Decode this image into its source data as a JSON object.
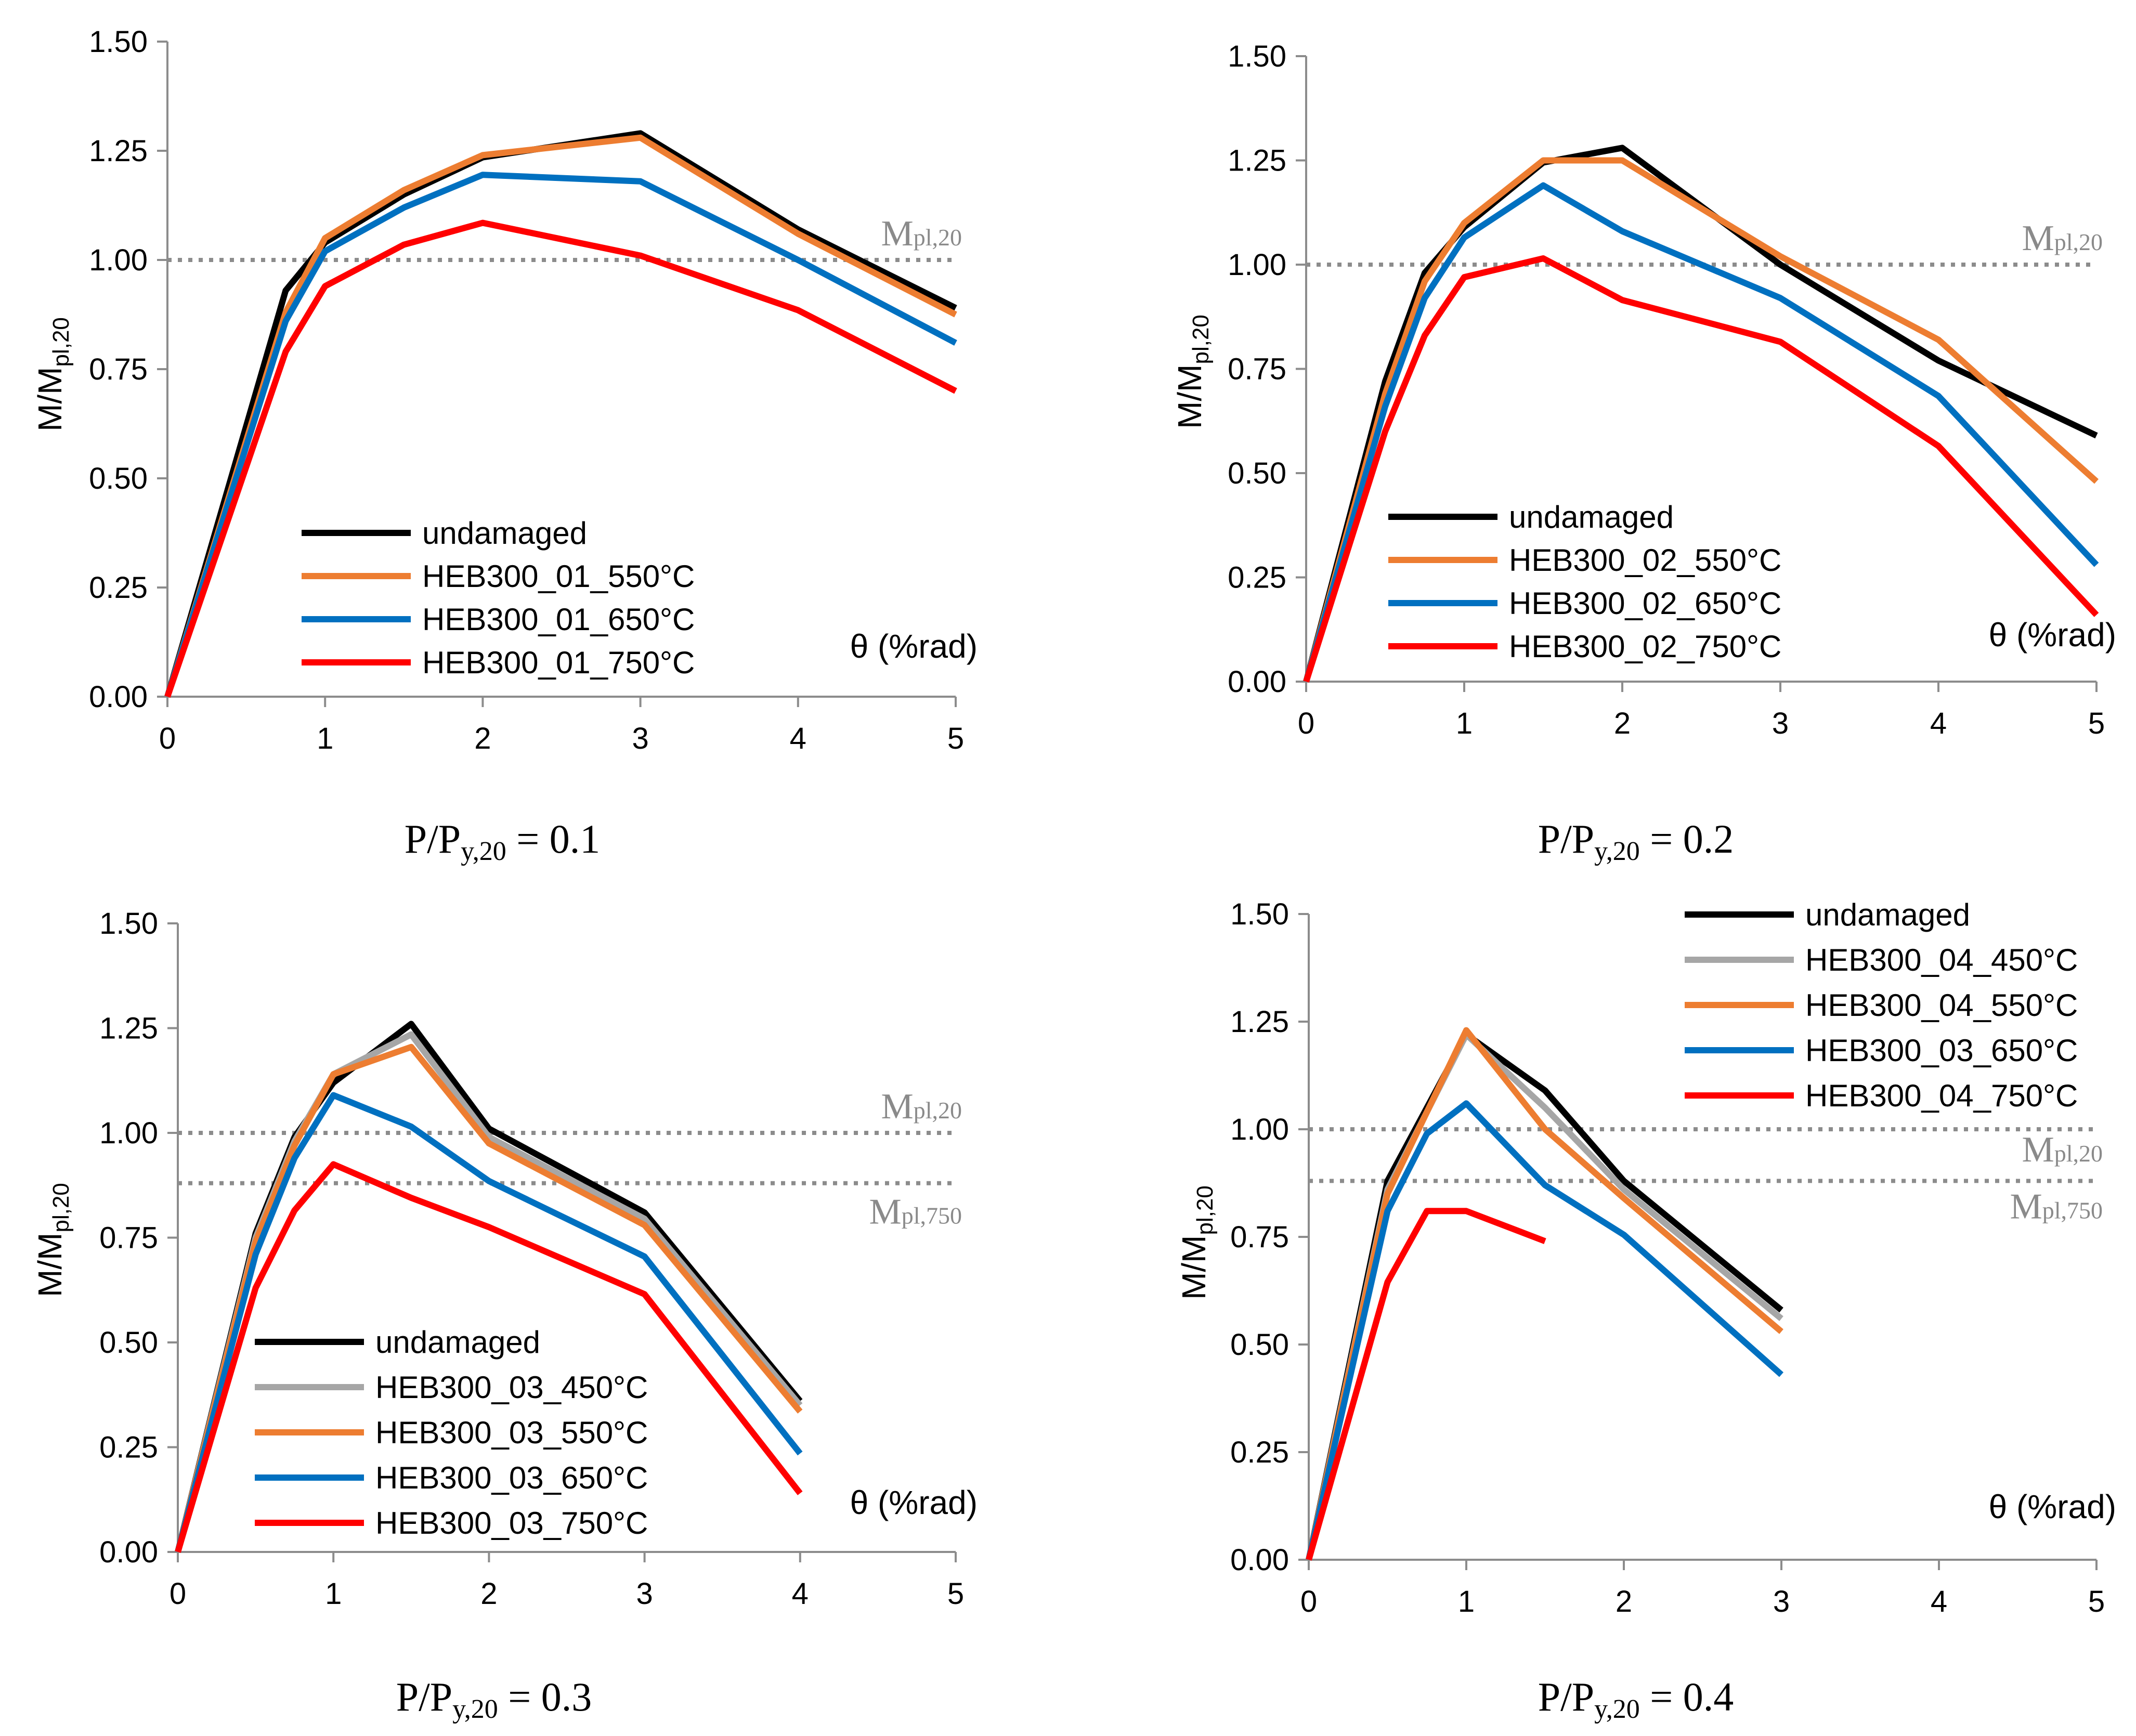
{
  "colors": {
    "undamaged": "#000000",
    "t450": "#a6a6a6",
    "t550": "#ed7d31",
    "t650": "#0070c0",
    "t750": "#ff0000",
    "axis": "#8c8c8c",
    "ref": "#8c8c8c",
    "annot": "#8a8a8a"
  },
  "chart_data": [
    {
      "type": "line",
      "caption": {
        "main": "P/P",
        "sub": "y,20",
        "rest": " = 0.1"
      },
      "ylabel": {
        "main": "M/M",
        "sub": "pl,20"
      },
      "xlabel": "θ (%rad)",
      "xlim": [
        0,
        5
      ],
      "ylim": [
        0,
        1.5
      ],
      "xticks": [
        "0",
        "1",
        "2",
        "3",
        "4",
        "5"
      ],
      "yticks": [
        "0.00",
        "0.25",
        "0.50",
        "0.75",
        "1.00",
        "1.25",
        "1.50"
      ],
      "legend_position": "bottom-left",
      "ref_lines": [
        {
          "y": 1.0,
          "label": "M",
          "sub": "pl,20",
          "label_side": "above"
        }
      ],
      "series": [
        {
          "name": "undamaged",
          "color_key": "undamaged",
          "x": [
            0,
            0.75,
            1,
            1.5,
            2,
            3,
            4,
            5
          ],
          "y": [
            0,
            0.93,
            1.04,
            1.15,
            1.235,
            1.29,
            1.07,
            0.89
          ]
        },
        {
          "name": "HEB300_01_550°C",
          "color_key": "t550",
          "x": [
            0,
            0.75,
            1,
            1.5,
            2,
            3,
            4,
            5
          ],
          "y": [
            0,
            0.88,
            1.05,
            1.16,
            1.24,
            1.28,
            1.06,
            0.875
          ]
        },
        {
          "name": "HEB300_01_650°C",
          "color_key": "t650",
          "x": [
            0,
            0.75,
            1,
            1.5,
            2,
            3,
            4,
            5
          ],
          "y": [
            0,
            0.86,
            1.02,
            1.12,
            1.195,
            1.18,
            1.0,
            0.81
          ]
        },
        {
          "name": "HEB300_01_750°C",
          "color_key": "t750",
          "x": [
            0,
            0.75,
            1,
            1.5,
            2,
            3,
            4,
            5
          ],
          "y": [
            0,
            0.79,
            0.94,
            1.035,
            1.085,
            1.01,
            0.885,
            0.7
          ]
        }
      ]
    },
    {
      "type": "line",
      "caption": {
        "main": "P/P",
        "sub": "y,20",
        "rest": " = 0.2"
      },
      "ylabel": {
        "main": "M/M",
        "sub": "pl,20"
      },
      "xlabel": "θ (%rad)",
      "xlim": [
        0,
        5
      ],
      "ylim": [
        0,
        1.5
      ],
      "xticks": [
        "0",
        "1",
        "2",
        "3",
        "4",
        "5"
      ],
      "yticks": [
        "0.00",
        "0.25",
        "0.50",
        "0.75",
        "1.00",
        "1.25",
        "1.50"
      ],
      "legend_position": "bottom-left",
      "ref_lines": [
        {
          "y": 1.0,
          "label": "M",
          "sub": "pl,20",
          "label_side": "above"
        }
      ],
      "series": [
        {
          "name": "undamaged",
          "color_key": "undamaged",
          "x": [
            0,
            0.5,
            0.75,
            1,
            1.5,
            2,
            3,
            4,
            5
          ],
          "y": [
            0,
            0.72,
            0.98,
            1.09,
            1.245,
            1.28,
            1.0,
            0.77,
            0.59
          ]
        },
        {
          "name": "HEB300_02_550°C",
          "color_key": "t550",
          "x": [
            0,
            0.5,
            0.75,
            1,
            1.5,
            2,
            3,
            4,
            5
          ],
          "y": [
            0,
            0.69,
            0.96,
            1.1,
            1.25,
            1.25,
            1.02,
            0.82,
            0.48
          ]
        },
        {
          "name": "HEB300_02_650°C",
          "color_key": "t650",
          "x": [
            0,
            0.5,
            0.75,
            1,
            1.5,
            2,
            3,
            4,
            5
          ],
          "y": [
            0,
            0.66,
            0.92,
            1.065,
            1.19,
            1.08,
            0.92,
            0.685,
            0.28
          ]
        },
        {
          "name": "HEB300_02_750°C",
          "color_key": "t750",
          "x": [
            0,
            0.5,
            0.75,
            1,
            1.5,
            2,
            3,
            4,
            5
          ],
          "y": [
            0,
            0.6,
            0.83,
            0.97,
            1.015,
            0.915,
            0.815,
            0.565,
            0.16
          ]
        }
      ]
    },
    {
      "type": "line",
      "caption": {
        "main": "P/P",
        "sub": "y,20",
        "rest": " = 0.3"
      },
      "ylabel": {
        "main": "M/M",
        "sub": "pl,20"
      },
      "xlabel": "θ (%rad)",
      "xlim": [
        0,
        5
      ],
      "ylim": [
        0,
        1.5
      ],
      "xticks": [
        "0",
        "1",
        "2",
        "3",
        "4",
        "5"
      ],
      "yticks": [
        "0.00",
        "0.25",
        "0.50",
        "0.75",
        "1.00",
        "1.25",
        "1.50"
      ],
      "legend_position": "bottom-left",
      "ref_lines": [
        {
          "y": 1.0,
          "label": "M",
          "sub": "pl,20",
          "label_side": "above"
        },
        {
          "y": 0.88,
          "label": "M",
          "sub": "pl,750",
          "label_side": "below"
        }
      ],
      "series": [
        {
          "name": "undamaged",
          "color_key": "undamaged",
          "x": [
            0,
            0.5,
            0.75,
            1,
            1.5,
            2,
            3,
            4
          ],
          "y": [
            0,
            0.76,
            0.99,
            1.12,
            1.26,
            1.01,
            0.81,
            0.36
          ]
        },
        {
          "name": "HEB300_03_450°C",
          "color_key": "t450",
          "x": [
            0,
            0.5,
            0.75,
            1,
            1.5,
            2,
            3,
            4
          ],
          "y": [
            0,
            0.75,
            0.98,
            1.14,
            1.235,
            0.99,
            0.795,
            0.35
          ]
        },
        {
          "name": "HEB300_03_550°C",
          "color_key": "t550",
          "x": [
            0,
            0.5,
            0.75,
            1,
            1.5,
            2,
            3,
            4
          ],
          "y": [
            0,
            0.74,
            0.97,
            1.14,
            1.205,
            0.975,
            0.78,
            0.335
          ]
        },
        {
          "name": "HEB300_03_650°C",
          "color_key": "t650",
          "x": [
            0,
            0.5,
            0.75,
            1,
            1.5,
            2,
            3,
            4
          ],
          "y": [
            0,
            0.71,
            0.94,
            1.09,
            1.015,
            0.885,
            0.705,
            0.235
          ]
        },
        {
          "name": "HEB300_03_750°C",
          "color_key": "t750",
          "x": [
            0,
            0.5,
            0.75,
            1,
            1.5,
            2,
            3,
            4
          ],
          "y": [
            0,
            0.63,
            0.815,
            0.925,
            0.845,
            0.775,
            0.615,
            0.14
          ]
        }
      ]
    },
    {
      "type": "line",
      "caption": {
        "main": "P/P",
        "sub": "y,20",
        "rest": " = 0.4"
      },
      "ylabel": {
        "main": "M/M",
        "sub": "pl,20"
      },
      "xlabel": "θ (%rad)",
      "xlim": [
        0,
        5
      ],
      "ylim": [
        0,
        1.5
      ],
      "xticks": [
        "0",
        "1",
        "2",
        "3",
        "4",
        "5"
      ],
      "yticks": [
        "0.00",
        "0.25",
        "0.50",
        "0.75",
        "1.00",
        "1.25",
        "1.50"
      ],
      "legend_position": "top-right",
      "ref_lines": [
        {
          "y": 1.0,
          "label": "M",
          "sub": "pl,20",
          "label_side": "below"
        },
        {
          "y": 0.88,
          "label": "M",
          "sub": "pl,750",
          "label_side": "below"
        }
      ],
      "series": [
        {
          "name": "undamaged",
          "color_key": "undamaged",
          "x": [
            0,
            0.5,
            1,
            1.5,
            2,
            3
          ],
          "y": [
            0,
            0.88,
            1.22,
            1.09,
            0.88,
            0.58
          ]
        },
        {
          "name": "HEB300_04_450°C",
          "color_key": "t450",
          "x": [
            0,
            0.5,
            1,
            1.5,
            2,
            3
          ],
          "y": [
            0,
            0.86,
            1.22,
            1.05,
            0.86,
            0.56
          ]
        },
        {
          "name": "HEB300_04_550°C",
          "color_key": "t550",
          "x": [
            0,
            0.5,
            1,
            1.5,
            2,
            3
          ],
          "y": [
            0,
            0.85,
            1.23,
            1.0,
            0.84,
            0.53
          ]
        },
        {
          "name": "HEB300_03_650°C",
          "color_key": "t650",
          "x": [
            0,
            0.5,
            0.75,
            1,
            1.5,
            2,
            3
          ],
          "y": [
            0,
            0.81,
            0.99,
            1.06,
            0.87,
            0.755,
            0.43
          ]
        },
        {
          "name": "HEB300_04_750°C",
          "color_key": "t750",
          "x": [
            0,
            0.5,
            0.75,
            1,
            1.5
          ],
          "y": [
            0,
            0.645,
            0.81,
            0.81,
            0.74
          ]
        }
      ]
    }
  ]
}
